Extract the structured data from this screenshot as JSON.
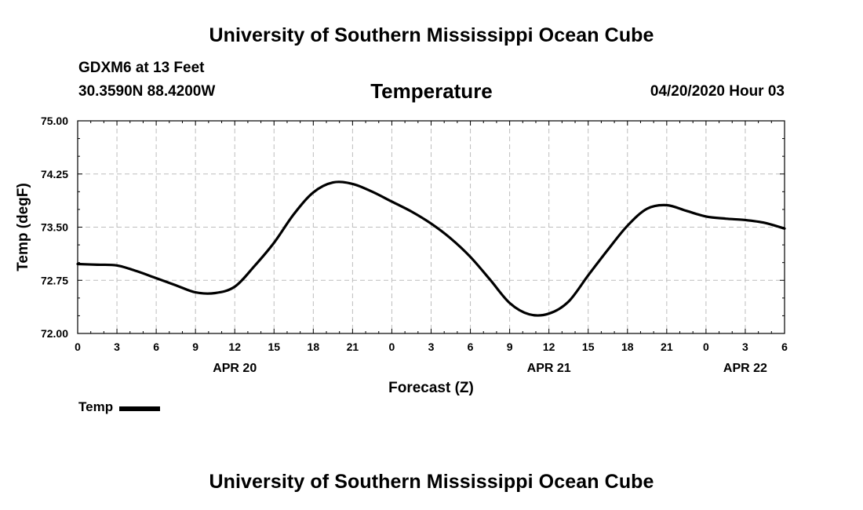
{
  "header": {
    "org_title": "University of Southern Mississippi Ocean Cube",
    "station": "GDXM6 at 13 Feet",
    "coords": "30.3590N 88.4200W",
    "variable_title": "Temperature",
    "datetime": "04/20/2020 Hour 03"
  },
  "footer": {
    "org_title": "University of Southern Mississippi Ocean Cube"
  },
  "legend": {
    "label": "Temp"
  },
  "chart_data": {
    "type": "line",
    "title": "Temperature",
    "xlabel": "Forecast (Z)",
    "ylabel": "Temp (degF)",
    "xlim": [
      0,
      54
    ],
    "ylim": [
      72.0,
      75.0
    ],
    "grid": true,
    "x_tick_values": [
      0,
      3,
      6,
      9,
      12,
      15,
      18,
      21,
      24,
      27,
      30,
      33,
      36,
      39,
      42,
      45,
      48,
      51,
      54
    ],
    "x_tick_labels": [
      "0",
      "3",
      "6",
      "9",
      "12",
      "15",
      "18",
      "21",
      "0",
      "3",
      "6",
      "9",
      "12",
      "15",
      "18",
      "21",
      "0",
      "3",
      "6"
    ],
    "y_tick_values": [
      72.0,
      72.75,
      73.5,
      74.25,
      75.0
    ],
    "y_tick_labels": [
      "72.00",
      "72.75",
      "73.50",
      "74.25",
      "75.00"
    ],
    "date_labels": [
      {
        "x": 12,
        "label": "APR 20"
      },
      {
        "x": 36,
        "label": "APR 21"
      },
      {
        "x": 51,
        "label": "APR 22"
      }
    ],
    "series": [
      {
        "name": "Temp",
        "color": "#000000",
        "x": [
          0,
          1.5,
          3,
          4.5,
          6,
          7.5,
          9,
          10.5,
          12,
          13.5,
          15,
          16.5,
          18,
          19.5,
          21,
          22.5,
          24,
          25.5,
          27,
          28.5,
          30,
          31.5,
          33,
          34.5,
          36,
          37.5,
          39,
          40.5,
          42,
          43.5,
          45,
          46.5,
          48,
          49.5,
          51,
          52.5,
          54
        ],
        "values": [
          72.98,
          72.97,
          72.96,
          72.88,
          72.78,
          72.68,
          72.58,
          72.57,
          72.66,
          72.95,
          73.28,
          73.68,
          73.99,
          74.13,
          74.11,
          74.0,
          73.86,
          73.72,
          73.55,
          73.34,
          73.08,
          72.76,
          72.43,
          72.27,
          72.28,
          72.45,
          72.82,
          73.18,
          73.52,
          73.76,
          73.81,
          73.73,
          73.65,
          73.62,
          73.6,
          73.56,
          73.48
        ]
      }
    ]
  }
}
